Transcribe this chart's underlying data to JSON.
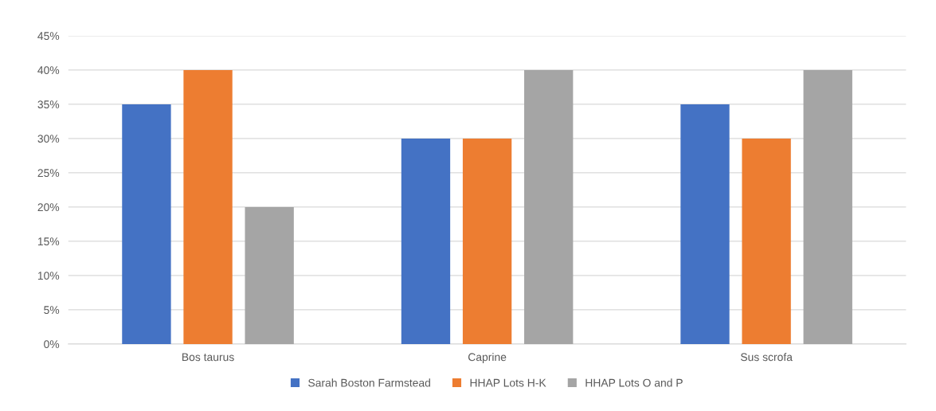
{
  "chart_data": {
    "type": "bar",
    "categories": [
      "Bos taurus",
      "Caprine",
      "Sus scrofa"
    ],
    "series": [
      {
        "name": "Sarah Boston Farmstead",
        "color": "#4472c4",
        "values": [
          35,
          30,
          35
        ]
      },
      {
        "name": "HHAP Lots H-K",
        "color": "#ed7d31",
        "values": [
          40,
          30,
          30
        ]
      },
      {
        "name": "HHAP Lots O and P",
        "color": "#a5a5a5",
        "values": [
          20,
          40,
          40
        ]
      }
    ],
    "ylim": [
      0,
      45
    ],
    "yticks": [
      {
        "value": 0,
        "label": "0%"
      },
      {
        "value": 5,
        "label": "5%"
      },
      {
        "value": 10,
        "label": "10%"
      },
      {
        "value": 15,
        "label": "15%"
      },
      {
        "value": 20,
        "label": "20%"
      },
      {
        "value": 25,
        "label": "25%"
      },
      {
        "value": 30,
        "label": "30%"
      },
      {
        "value": 35,
        "label": "35%"
      },
      {
        "value": 40,
        "label": "40%"
      },
      {
        "value": 45,
        "label": "45%"
      }
    ],
    "grid": "y",
    "legend": "bottom"
  }
}
